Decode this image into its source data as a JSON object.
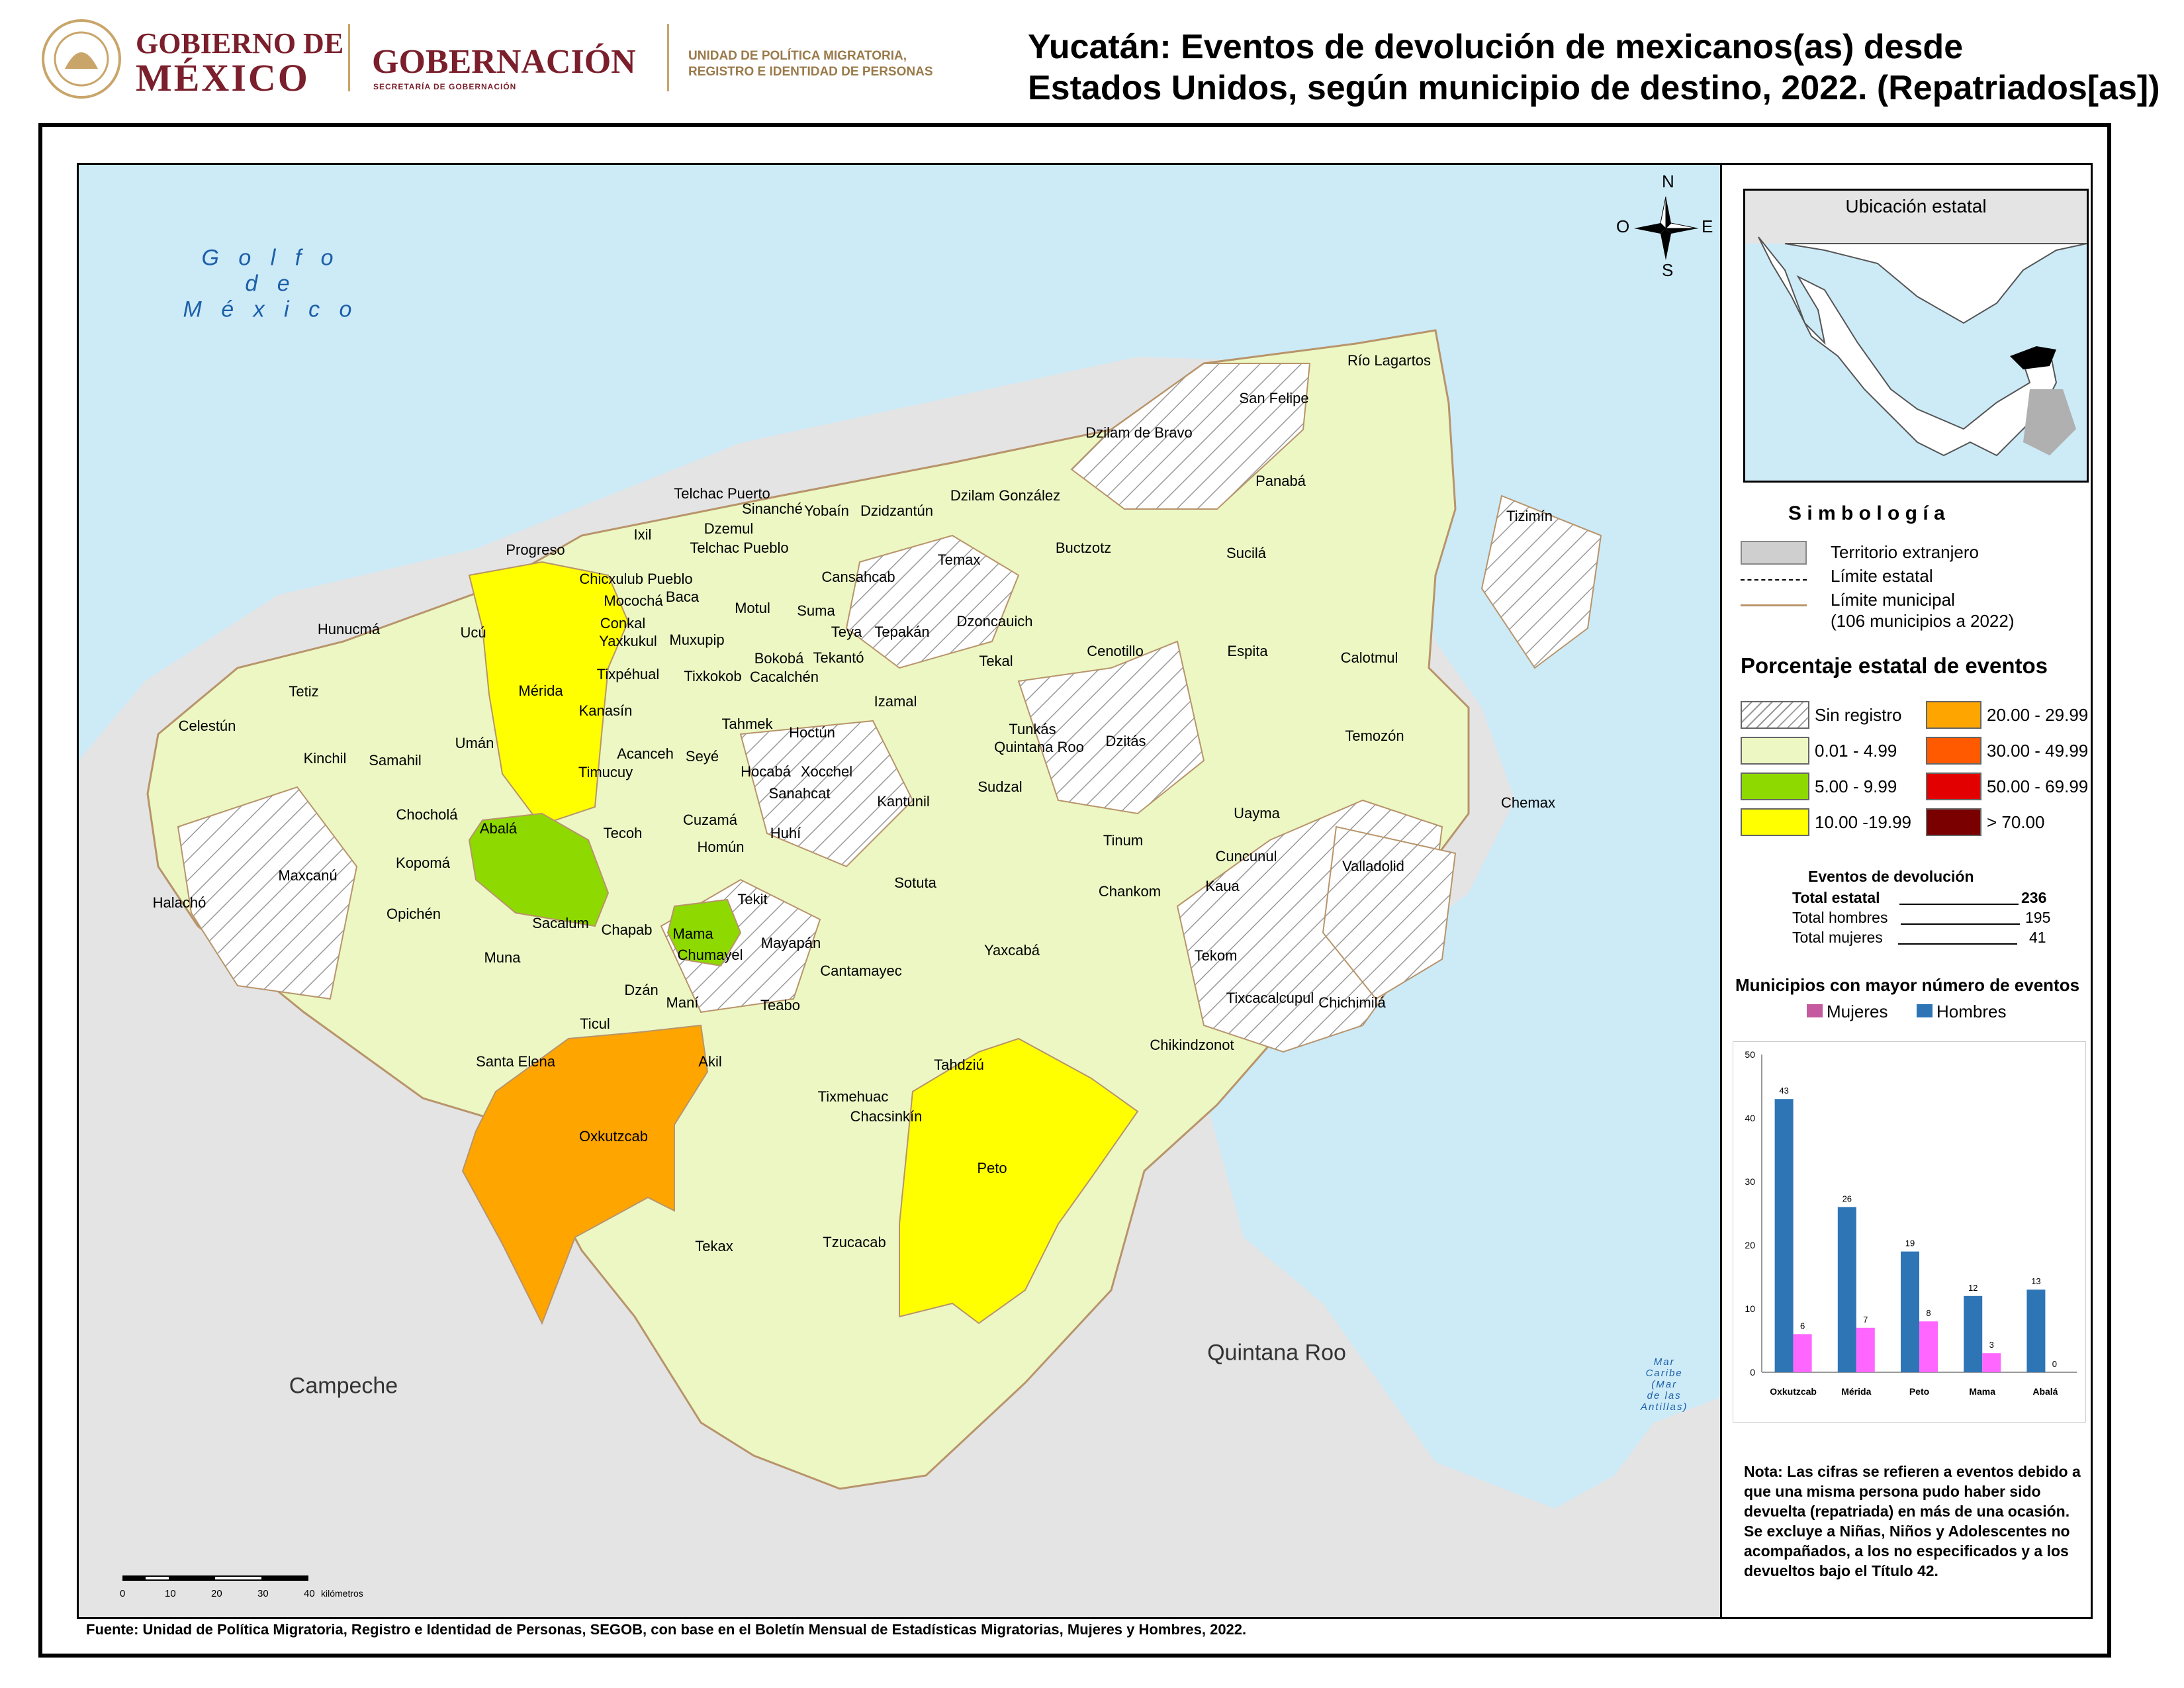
{
  "header": {
    "logo1_line1": "GOBIERNO DE",
    "logo1_line2": "MÉXICO",
    "logo2_title": "GOBERNACIÓN",
    "logo2_sub": "SECRETARÍA DE GOBERNACIÓN",
    "logo3_line1": "UNIDAD DE POLÍTICA MIGRATORIA,",
    "logo3_line2": "REGISTRO E IDENTIDAD DE PERSONAS",
    "title_line1": "Yucatán: Eventos de devolución de mexicanos(as) desde",
    "title_line2": "Estados Unidos, según municipio de destino, 2022. (Repatriados[as])"
  },
  "map": {
    "sea_label": [
      "G o l f o",
      "d e",
      "M é x i c o"
    ],
    "neighbors": {
      "campeche": "Campeche",
      "quintana_roo": "Quintana Roo"
    },
    "caribe": [
      "Mar",
      "Caribe",
      "(Mar",
      "de las",
      "Antillas)"
    ],
    "compass": {
      "n": "N",
      "s": "S",
      "e": "E",
      "o": "O"
    },
    "scale": {
      "ticks": [
        "0",
        "10",
        "20",
        "30",
        "40"
      ],
      "unit": "kilómetros"
    },
    "municipalities": [
      {
        "name": "Río Lagartos"
      },
      {
        "name": "San Felipe"
      },
      {
        "name": "Dzilam de Bravo"
      },
      {
        "name": "Panabá"
      },
      {
        "name": "Telchac Puerto"
      },
      {
        "name": "Sinanché"
      },
      {
        "name": "Dzilam González"
      },
      {
        "name": "Yobaín"
      },
      {
        "name": "Dzidzantún"
      },
      {
        "name": "Tizimín"
      },
      {
        "name": "Ixil"
      },
      {
        "name": "Dzemul"
      },
      {
        "name": "Progreso"
      },
      {
        "name": "Telchac Pueblo"
      },
      {
        "name": "Buctzotz"
      },
      {
        "name": "Temax"
      },
      {
        "name": "Sucilá"
      },
      {
        "name": "Chicxulub Pueblo"
      },
      {
        "name": "Cansahcab"
      },
      {
        "name": "Mocochá"
      },
      {
        "name": "Baca"
      },
      {
        "name": "Motul"
      },
      {
        "name": "Suma"
      },
      {
        "name": "Conkal"
      },
      {
        "name": "Dzoncauich"
      },
      {
        "name": "Hunucmá"
      },
      {
        "name": "Ucú"
      },
      {
        "name": "Teya"
      },
      {
        "name": "Tepakán"
      },
      {
        "name": "Yaxkukul"
      },
      {
        "name": "Muxupip"
      },
      {
        "name": "Cenotillo"
      },
      {
        "name": "Espita"
      },
      {
        "name": "Calotmul"
      },
      {
        "name": "Bokobá"
      },
      {
        "name": "Tekantó"
      },
      {
        "name": "Tekal"
      },
      {
        "name": "Tixpéhual"
      },
      {
        "name": "Tixkokob"
      },
      {
        "name": "Cacalchén"
      },
      {
        "name": "Tetiz"
      },
      {
        "name": "Mérida"
      },
      {
        "name": "Izamal"
      },
      {
        "name": "Kanasín"
      },
      {
        "name": "Celestún"
      },
      {
        "name": "Tahmek"
      },
      {
        "name": "Hoctún"
      },
      {
        "name": "Tunkás"
      },
      {
        "name": "Temozón"
      },
      {
        "name": "Umán"
      },
      {
        "name": "Dzitás"
      },
      {
        "name": "Quintana Roo"
      },
      {
        "name": "Acanceh"
      },
      {
        "name": "Seyé"
      },
      {
        "name": "Kinchil"
      },
      {
        "name": "Samahil"
      },
      {
        "name": "Hocabá"
      },
      {
        "name": "Xocchel"
      },
      {
        "name": "Timucuy"
      },
      {
        "name": "Sudzal"
      },
      {
        "name": "Sanahcat"
      },
      {
        "name": "Chemax"
      },
      {
        "name": "Kantunil"
      },
      {
        "name": "Chocholá"
      },
      {
        "name": "Cuzamá"
      },
      {
        "name": "Uayma"
      },
      {
        "name": "Abalá"
      },
      {
        "name": "Huhí"
      },
      {
        "name": "Tinum"
      },
      {
        "name": "Tecoh"
      },
      {
        "name": "Homún"
      },
      {
        "name": "Cuncunul"
      },
      {
        "name": "Kopomá"
      },
      {
        "name": "Valladolid"
      },
      {
        "name": "Maxcanú"
      },
      {
        "name": "Sotuta"
      },
      {
        "name": "Kaua"
      },
      {
        "name": "Chankom"
      },
      {
        "name": "Tekit"
      },
      {
        "name": "Halachó"
      },
      {
        "name": "Opichén"
      },
      {
        "name": "Sacalum"
      },
      {
        "name": "Chapab"
      },
      {
        "name": "Mama"
      },
      {
        "name": "Mayapán"
      },
      {
        "name": "Yaxcabá"
      },
      {
        "name": "Chumayel"
      },
      {
        "name": "Tekom"
      },
      {
        "name": "Muna"
      },
      {
        "name": "Cantamayec"
      },
      {
        "name": "Dzán"
      },
      {
        "name": "Tixcacalcupul"
      },
      {
        "name": "Chichimilá"
      },
      {
        "name": "Maní"
      },
      {
        "name": "Teabo"
      },
      {
        "name": "Ticul"
      },
      {
        "name": "Chikindzonot"
      },
      {
        "name": "Santa Elena"
      },
      {
        "name": "Akil"
      },
      {
        "name": "Tahdziú"
      },
      {
        "name": "Tixmehuac"
      },
      {
        "name": "Chacsinkín"
      },
      {
        "name": "Oxkutzcab"
      },
      {
        "name": "Peto"
      },
      {
        "name": "Tekax"
      },
      {
        "name": "Tzucacab"
      }
    ]
  },
  "inset": {
    "title": "Ubicación estatal"
  },
  "legend": {
    "title": "S i m b o l o g í a",
    "foreign": "Territorio extranjero",
    "state_limit": "Límite estatal",
    "muni_limit_1": "Límite municipal",
    "muni_limit_2": "(106 municipios a 2022)",
    "pct_title": "Porcentaje estatal de eventos",
    "classes": [
      {
        "label": "Sin registro",
        "color": "hatch"
      },
      {
        "label": "0.01  - 4.99",
        "color": "#ecf7c4"
      },
      {
        "label": "5.00  - 9.99",
        "color": "#8ed900"
      },
      {
        "label": "10.00 -19.99",
        "color": "#ffff00"
      },
      {
        "label": "20.00 - 29.99",
        "color": "#ffa500"
      },
      {
        "label": "30.00 - 49.99",
        "color": "#ff5a00"
      },
      {
        "label": "50.00 - 69.99",
        "color": "#e30000"
      },
      {
        "label": "> 70.00",
        "color": "#7a0000"
      }
    ]
  },
  "stats": {
    "title": "Eventos de devolución",
    "rows": [
      {
        "label": "Total estatal",
        "value": "236"
      },
      {
        "label": "Total hombres",
        "value": "195"
      },
      {
        "label": "Total mujeres",
        "value": "41"
      }
    ]
  },
  "chart_data": {
    "type": "bar",
    "title": "Municipios con mayor número de eventos",
    "categories": [
      "Oxkutzcab",
      "Mérida",
      "Peto",
      "Mama",
      "Abalá"
    ],
    "series": [
      {
        "name": "Hombres",
        "values": [
          43,
          26,
          19,
          12,
          13
        ],
        "color": "#2e75b6"
      },
      {
        "name": "Mujeres",
        "values": [
          6,
          7,
          8,
          3,
          0
        ],
        "color": "#ff66ff"
      }
    ],
    "ylim": [
      0,
      50
    ],
    "yticks": [
      "0",
      "10",
      "20",
      "30",
      "40",
      "50"
    ],
    "legend_position": "top"
  },
  "note": "Nota: Las cifras se refieren a eventos debido a que una misma persona pudo haber sido devuelta (repatriada) en más de una ocasión. Se excluye a Niñas, Niños y Adolescentes no acompañados, a los no especificados y a los devueltos bajo el Título 42.",
  "source": "Fuente: Unidad de Política Migratoria, Registro e Identidad de Personas, SEGOB, con base en el Boletín Mensual de Estadísticas Migratorias, Mujeres y Hombres, 2022."
}
